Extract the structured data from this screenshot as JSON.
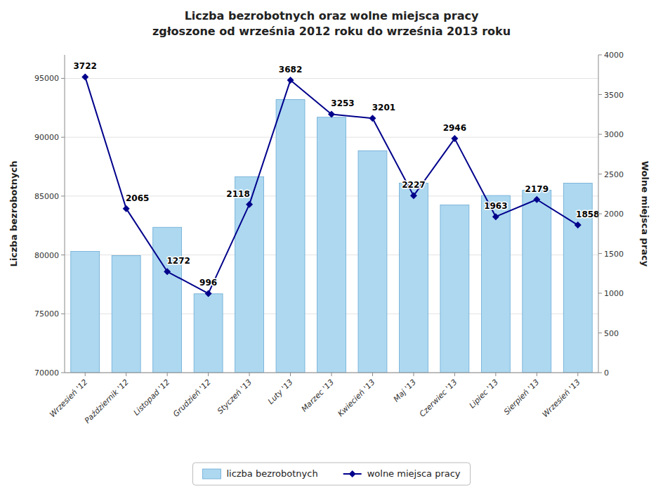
{
  "chart_data": {
    "type": "bar",
    "title": "Liczba bezrobotnych oraz wolne miejsca pracy",
    "subtitle": "zgłoszone od września 2012 roku do września 2013 roku",
    "categories": [
      "Wrzesień '12",
      "Październik '12",
      "Listopad '12",
      "Grudzień '12",
      "Styczeń '13",
      "Luty '13",
      "Marzec '13",
      "Kwiecień '13",
      "Maj '13",
      "Czerwiec '13",
      "Lipiec '13",
      "Sierpień '13",
      "Wrzesień '13"
    ],
    "series": [
      {
        "name": "liczba bezrobotnych",
        "type": "bar",
        "color": "#add8f0",
        "values": [
          80300,
          79950,
          82350,
          76700,
          86650,
          93200,
          91700,
          88850,
          86100,
          84250,
          85050,
          85500,
          86100
        ]
      },
      {
        "name": "wolne miejsca pracy",
        "type": "line",
        "color": "#00008B",
        "marker": "diamond",
        "axis": "y2",
        "data_labels": true,
        "values": [
          3722,
          2065,
          1272,
          996,
          2118,
          3682,
          3253,
          3201,
          2227,
          2946,
          1963,
          2179,
          1858
        ]
      }
    ],
    "ylabel": "Liczba bezrobotnych",
    "y2label": "Wolne miejsca pracy",
    "ylim": [
      70000,
      97000
    ],
    "yticks": [
      70000,
      75000,
      80000,
      85000,
      90000,
      95000
    ],
    "y2lim": [
      0,
      4000
    ],
    "y2ticks": [
      0,
      500,
      1000,
      1500,
      2000,
      2500,
      3000,
      3500,
      4000
    ],
    "grid": true,
    "legend": "bottom"
  }
}
